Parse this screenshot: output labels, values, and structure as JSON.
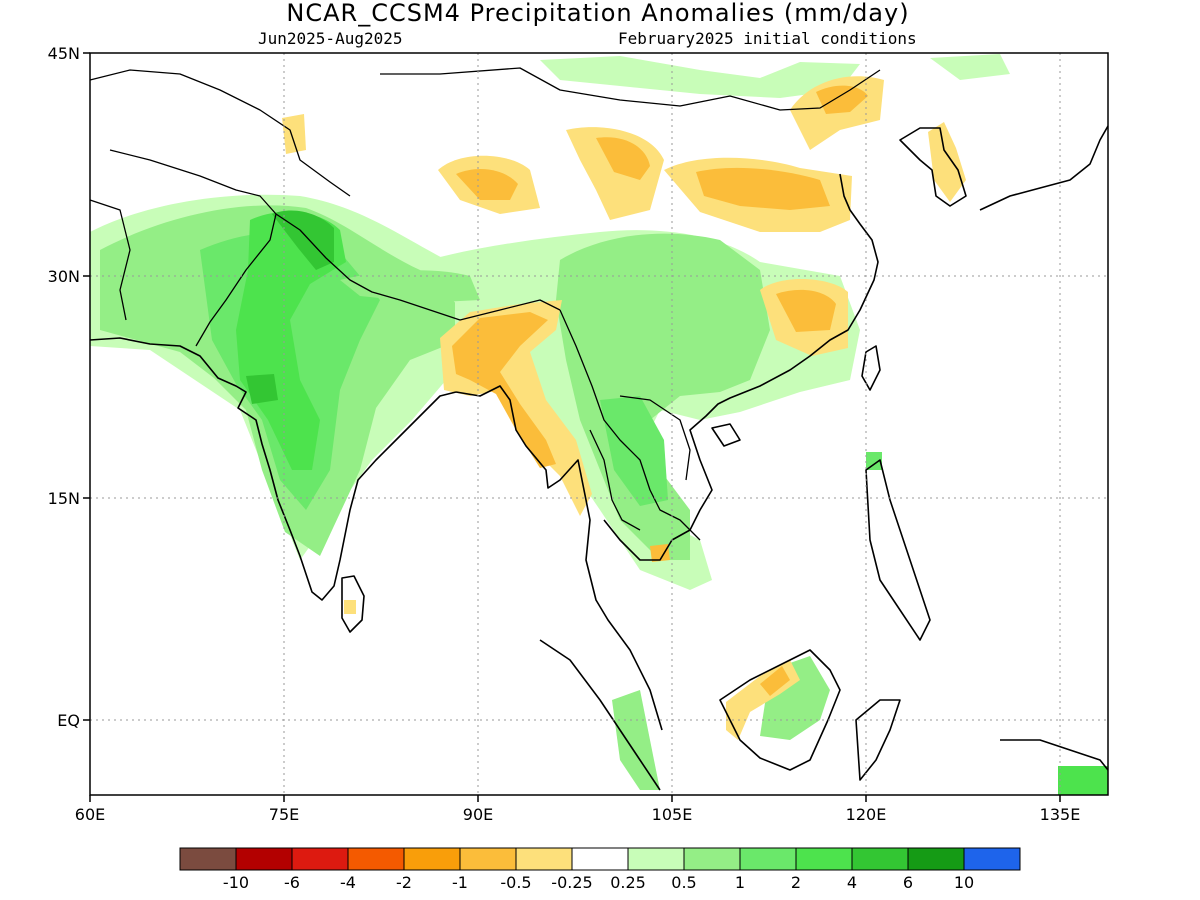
{
  "title": "NCAR_CCSM4 Precipitation Anomalies (mm/day)",
  "subtitle_left": "Jun2025-Aug2025",
  "subtitle_right": "February2025 initial conditions",
  "axes": {
    "x_ticks": [
      "60E",
      "75E",
      "90E",
      "105E",
      "120E",
      "135E"
    ],
    "y_ticks": [
      "45N",
      "30N",
      "15N",
      "EQ"
    ],
    "grid": "dotted"
  },
  "colorbar": {
    "colors": [
      "#7b4b3f",
      "#b30000",
      "#dd1a10",
      "#f45a00",
      "#f99e0a",
      "#fbbd3a",
      "#fde07b",
      "#ffffff",
      "#c8fdb8",
      "#94ee86",
      "#6ae86a",
      "#4de34d",
      "#33c633",
      "#159b15",
      "#1e64eb"
    ],
    "labels": [
      "-10",
      "-6",
      "-4",
      "-2",
      "-1",
      "-0.5",
      "-0.25",
      "0.25",
      "0.5",
      "1",
      "2",
      "4",
      "6",
      "10"
    ]
  }
}
